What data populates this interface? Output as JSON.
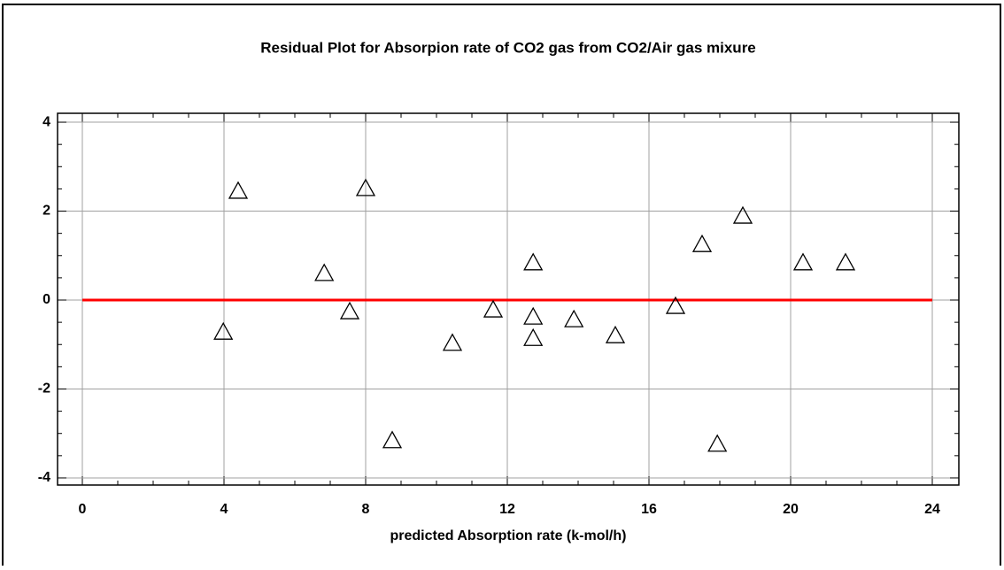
{
  "chart_data": {
    "type": "scatter",
    "title": "Residual Plot for Absorpion rate of CO2 gas from CO2/Air gas mixure",
    "x_label": "predicted Absorption rate (k-mol/h)",
    "series": [
      {
        "color": "#000000",
        "marker": "triangle",
        "x": [
          3.98,
          4.4,
          6.83,
          7.55,
          8.0,
          8.75,
          10.45,
          11.6,
          12.73,
          12.73,
          12.73,
          13.88,
          15.05,
          16.75,
          17.5,
          17.93,
          18.65,
          20.35,
          21.55
        ],
        "values": [
          -0.74,
          2.43,
          0.58,
          -0.28,
          2.49,
          -3.18,
          -0.99,
          -0.24,
          0.82,
          -0.4,
          -0.88,
          -0.46,
          -0.82,
          -0.16,
          1.23,
          -3.26,
          1.87,
          0.82,
          0.82
        ]
      }
    ],
    "reference_line": {
      "y": 0,
      "x": [
        0,
        24
      ],
      "color": "#ff0000"
    },
    "xlim": [
      -0.7,
      24.75
    ],
    "ylim": [
      -4.16,
      4.2
    ],
    "xticks": [
      0,
      4,
      8,
      12,
      16,
      20,
      24
    ],
    "yticks": [
      -4,
      -2,
      0,
      2,
      4
    ],
    "xminorticks": [
      1,
      2,
      3,
      5,
      6,
      7,
      9,
      10,
      11,
      13,
      14,
      15,
      17,
      18,
      19,
      21,
      22,
      23
    ],
    "yminorticks": [
      -3.5,
      -3,
      -2.5,
      -1.5,
      -1,
      -0.5,
      0.5,
      1,
      1.5,
      2.5,
      3,
      3.5
    ],
    "grid": true
  }
}
